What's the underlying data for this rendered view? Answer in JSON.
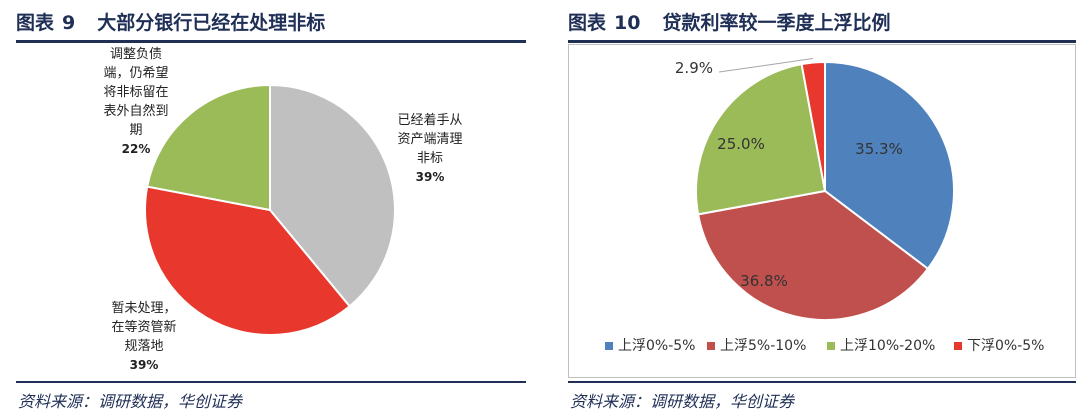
{
  "figure9": {
    "label": "图表",
    "number": "9",
    "title": "大部分银行已经在处理非标",
    "source": "资料来源：调研数据，华创证券",
    "chart_data": {
      "type": "pie",
      "title": "大部分银行已经在处理非标",
      "legend": "none",
      "slices": [
        {
          "label_lines": [
            "已经着手从",
            "资产端清理",
            "非标"
          ],
          "value": 39,
          "value_label": "39%",
          "color": "#c0c0c0"
        },
        {
          "label_lines": [
            "暂未处理，",
            "在等资管新",
            "规落地"
          ],
          "value": 39,
          "value_label": "39%",
          "color": "#e8372c"
        },
        {
          "label_lines": [
            "调整负债",
            "端，仍希望",
            "将非标留在",
            "表外自然到",
            "期"
          ],
          "value": 22,
          "value_label": "22%",
          "color": "#9bbb59"
        }
      ]
    }
  },
  "figure10": {
    "label": "图表",
    "number": "10",
    "title": "贷款利率较一季度上浮比例",
    "source": "资料来源：调研数据，华创证券",
    "chart_data": {
      "type": "pie",
      "title": "贷款利率较一季度上浮比例",
      "legend": "bottom",
      "slices": [
        {
          "name": "上浮0%-5%",
          "value": 35.3,
          "value_label": "35.3%",
          "color": "#4f81bd"
        },
        {
          "name": "上浮5%-10%",
          "value": 36.8,
          "value_label": "36.8%",
          "color": "#c0504d"
        },
        {
          "name": "上浮10%-20%",
          "value": 25.0,
          "value_label": "25.0%",
          "color": "#9bbb59"
        },
        {
          "name": "下浮0%-5%",
          "value": 2.9,
          "value_label": "2.9%",
          "color": "#e8372c"
        }
      ]
    }
  }
}
